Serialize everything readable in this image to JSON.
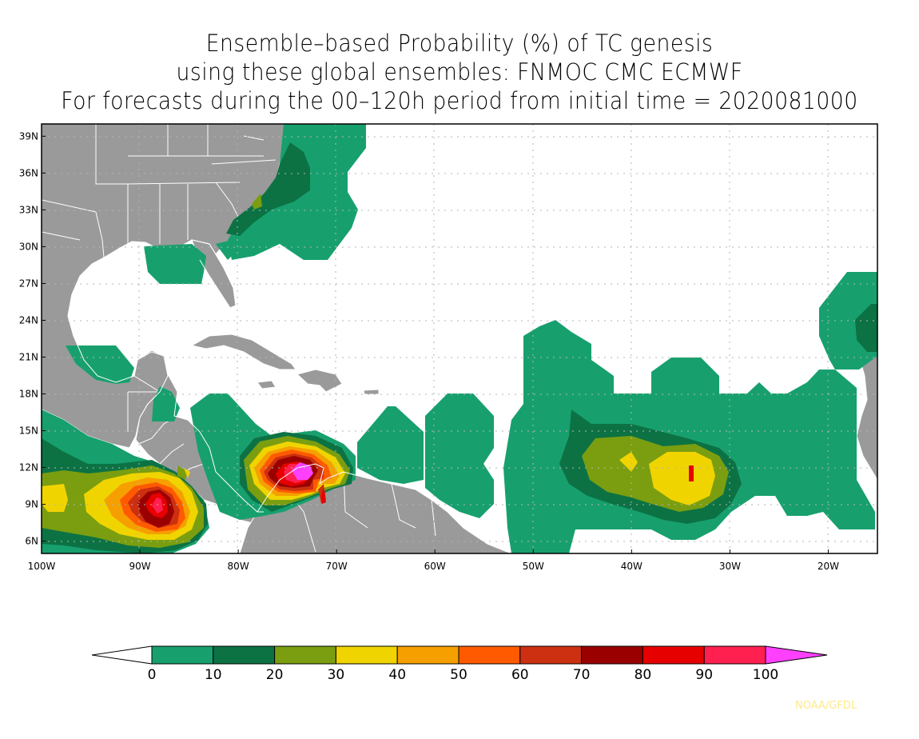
{
  "title": {
    "line1": "Ensemble–based Probability (%) of TC genesis",
    "line2": "using these global ensembles:   FNMOC CMC ECMWF",
    "line3": "For forecasts during the 00–120h period from initial time = 2020081000"
  },
  "axes": {
    "lon_labels": [
      "100W",
      "90W",
      "80W",
      "70W",
      "60W",
      "50W",
      "40W",
      "30W",
      "20W"
    ],
    "lat_labels": [
      "39N",
      "36N",
      "33N",
      "30N",
      "27N",
      "24N",
      "21N",
      "18N",
      "15N",
      "12N",
      "9N",
      "6N"
    ],
    "lon_range": [
      -100,
      -15
    ],
    "lat_range": [
      5,
      40
    ]
  },
  "colorbar": {
    "levels": [
      "0",
      "10",
      "20",
      "30",
      "40",
      "50",
      "60",
      "70",
      "80",
      "90",
      "100"
    ],
    "colors": [
      "#17a06e",
      "#0c7244",
      "#7a9e10",
      "#f0d400",
      "#f5a000",
      "#ff5a00",
      "#cc3010",
      "#9a0000",
      "#e60000",
      "#ff2050"
    ],
    "under_color": "#ffffff",
    "over_color": "#ff40ff"
  },
  "colors": {
    "land": "#9a9a9a",
    "ocean": "#ffffff",
    "border": "#ffffff",
    "grid": "#b4b4b4"
  },
  "credit": "NOAA/GFDL"
}
